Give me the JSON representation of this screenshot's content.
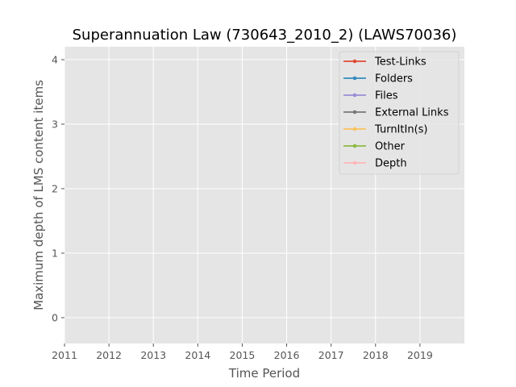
{
  "chart_data": {
    "type": "line",
    "title": "Superannuation Law (730643_2010_2) (LAWS70036)",
    "xlabel": "Time Period",
    "ylabel": "Maximum depth of LMS content items",
    "x_ticks": [
      "2011",
      "2012",
      "2013",
      "2014",
      "2015",
      "2016",
      "2017",
      "2018",
      "2019"
    ],
    "y_ticks": [
      "0",
      "1",
      "2",
      "3",
      "4"
    ],
    "xlim": [
      2011,
      2020
    ],
    "ylim": [
      -0.4,
      4.2
    ],
    "grid": true,
    "legend_position": "top-right",
    "series": [
      {
        "name": "Test-Links",
        "color": "#E24A33",
        "values": []
      },
      {
        "name": "Folders",
        "color": "#348ABD",
        "values": []
      },
      {
        "name": "Files",
        "color": "#988ED5",
        "values": []
      },
      {
        "name": "External Links",
        "color": "#777777",
        "values": []
      },
      {
        "name": "TurnItIn(s)",
        "color": "#FBC15E",
        "values": []
      },
      {
        "name": "Other",
        "color": "#8EBA42",
        "values": []
      },
      {
        "name": "Depth",
        "color": "#FFB5B8",
        "values": []
      }
    ]
  }
}
